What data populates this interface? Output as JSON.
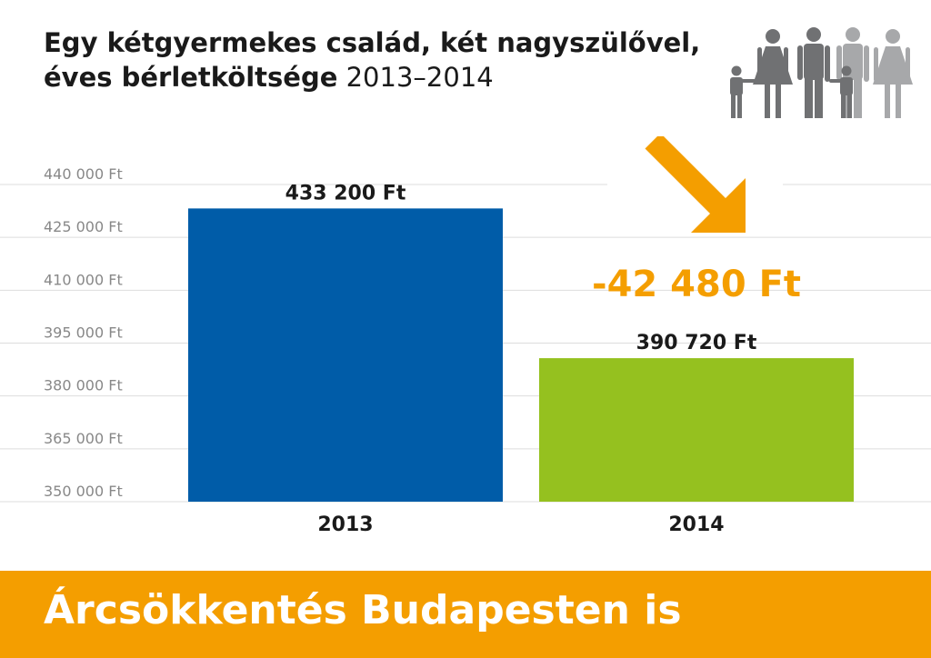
{
  "header": {
    "title_bold_line1": "Egy kétgyermekes család, két nagyszülővel,",
    "title_bold_line2": "éves bérletköltsége",
    "title_light": "2013–2014"
  },
  "icons": {
    "family": "family-icon",
    "arrow": "arrow-down-right-icon"
  },
  "colors": {
    "bar_2013": "#005ca8",
    "bar_2014": "#95c11f",
    "accent": "#f49e00",
    "grid": "#dddddd",
    "tick_text": "#888888",
    "label_text": "#1a1a1a",
    "people_dark": "#707173",
    "people_light": "#a7a8aa"
  },
  "chart_data": {
    "type": "bar",
    "categories": [
      "2013",
      "2014"
    ],
    "values": [
      433200,
      390720
    ],
    "value_labels": [
      "433 200 Ft",
      "390 720 Ft"
    ],
    "ylim": [
      350000,
      440000
    ],
    "yticks": [
      350000,
      365000,
      380000,
      395000,
      410000,
      425000,
      440000
    ],
    "ytick_labels": [
      "350 000 Ft",
      "365 000 Ft",
      "380 000 Ft",
      "395 000 Ft",
      "410 000 Ft",
      "425 000 Ft",
      "440 000 Ft"
    ],
    "grid": true,
    "annotation": "-42 480 Ft"
  },
  "footer": {
    "text": "Árcsökkentés Budapesten is"
  }
}
